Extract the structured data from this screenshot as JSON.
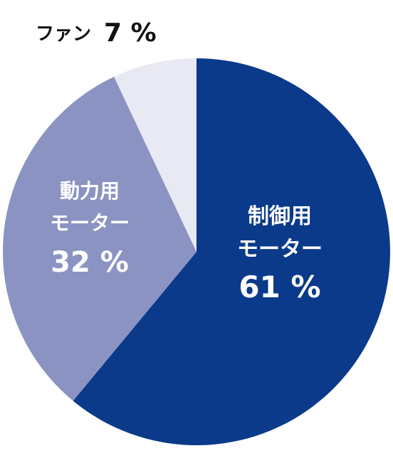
{
  "chart_data": {
    "type": "pie",
    "title": "",
    "slices": [
      {
        "label_line1": "制御用",
        "label_line2": "モーター",
        "value": 61,
        "value_text": "61 %",
        "color": "#0b3a8a"
      },
      {
        "label_line1": "動力用",
        "label_line2": "モーター",
        "value": 32,
        "value_text": "32 %",
        "color": "#8b93c2"
      },
      {
        "label_line1": "ファン",
        "label_line2": "",
        "value": 7,
        "value_text": "7 %",
        "color": "#e9e9f3"
      }
    ],
    "label_color_inside": "#ffffff",
    "label_color_outside": "#111111",
    "start_angle_deg": 0,
    "direction": "clockwise",
    "legend": "none"
  }
}
